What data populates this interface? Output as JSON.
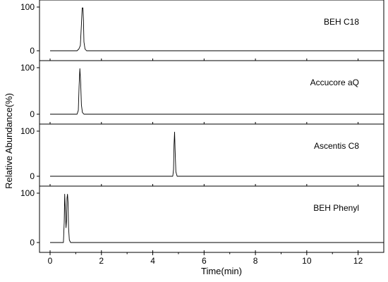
{
  "chart_data": {
    "type": "line",
    "ylabel": "Relative Abundance(%)",
    "xlabel": "Time(min)",
    "xlim": [
      0,
      13
    ],
    "x_ticks": [
      0,
      2,
      4,
      6,
      8,
      10,
      12
    ],
    "ylim": [
      0,
      100
    ],
    "y_ticks": [
      0,
      100
    ],
    "panels": [
      {
        "label": "BEH C18",
        "series": [
          {
            "x": [
              0,
              1.05,
              1.12,
              1.18,
              1.22,
              1.25,
              1.28,
              1.3,
              1.32,
              1.36,
              1.42,
              13
            ],
            "y": [
              0,
              0,
              4,
              12,
              60,
              98,
              98,
              70,
              20,
              4,
              0,
              0
            ]
          }
        ]
      },
      {
        "label": "Accucore aQ",
        "series": [
          {
            "x": [
              0,
              1.05,
              1.1,
              1.13,
              1.16,
              1.19,
              1.22,
              1.26,
              1.32,
              13
            ],
            "y": [
              0,
              0,
              8,
              60,
              98,
              70,
              20,
              4,
              0,
              0
            ]
          }
        ]
      },
      {
        "label": "Ascentis C8",
        "series": [
          {
            "x": [
              0,
              4.78,
              4.81,
              4.83,
              4.85,
              4.87,
              4.9,
              4.95,
              13
            ],
            "y": [
              0,
              0,
              15,
              70,
              98,
              60,
              10,
              0,
              0
            ]
          }
        ]
      },
      {
        "label": "BEH Phenyl",
        "series": [
          {
            "x": [
              0,
              0.52,
              0.55,
              0.57,
              0.59,
              0.62,
              0.64,
              0.66,
              0.68,
              0.7,
              0.72,
              0.75,
              0.8,
              13
            ],
            "y": [
              0,
              0,
              40,
              98,
              70,
              30,
              45,
              90,
              98,
              80,
              30,
              5,
              0,
              0
            ]
          }
        ]
      }
    ]
  }
}
